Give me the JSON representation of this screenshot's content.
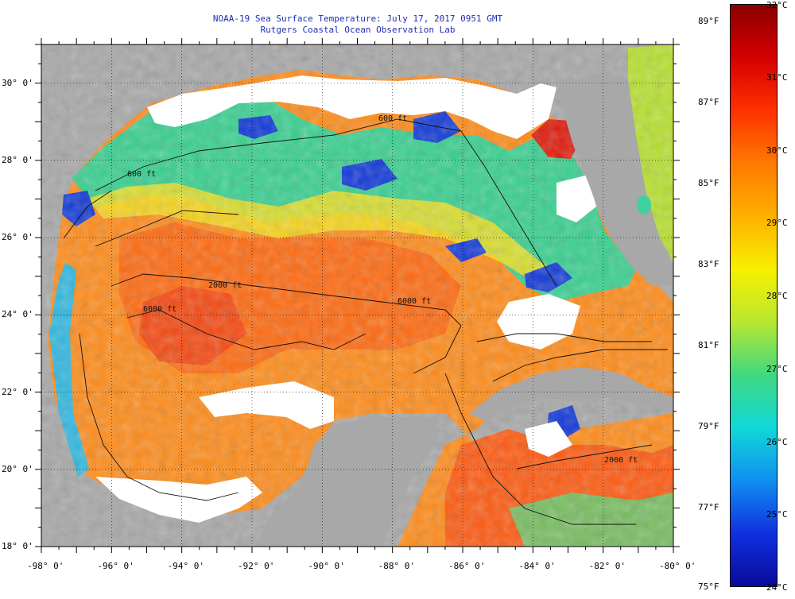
{
  "title": {
    "line1": "NOAA-19 Sea Surface Temperature:  July 17, 2017 0951 GMT",
    "line2": "Rutgers Coastal Ocean Observation Lab"
  },
  "map": {
    "lon_range": [
      -98,
      -80
    ],
    "lat_range": [
      18,
      31
    ],
    "lon_ticks": [
      "-98° 0'",
      "-96° 0'",
      "-94° 0'",
      "-92° 0'",
      "-90° 0'",
      "-88° 0'",
      "-86° 0'",
      "-84° 0'",
      "-82° 0'",
      "-80° 0'"
    ],
    "lat_ticks": [
      "30° 0'",
      "28° 0'",
      "26° 0'",
      "24° 0'",
      "22° 0'",
      "20° 0'",
      "18° 0'"
    ],
    "contour_labels": [
      "600 ft",
      "600 ft",
      "2000 ft",
      "6000 ft",
      "6000 ft",
      "2000 ft"
    ],
    "colors": {
      "land": "#a8a8a8",
      "cloud": "#ffffff",
      "contour": "#111111"
    }
  },
  "colorbar": {
    "fahrenheit_labels": [
      "89°F",
      "87°F",
      "85°F",
      "83°F",
      "81°F",
      "79°F",
      "77°F",
      "75°F"
    ],
    "celsius_labels": [
      "32°C",
      "31°C",
      "30°C",
      "29°C",
      "28°C",
      "27°C",
      "26°C",
      "25°C",
      "24°C"
    ],
    "stops": [
      "#8a0000",
      "#d40000",
      "#ff3000",
      "#ff7a00",
      "#ffb000",
      "#f8f000",
      "#b8e830",
      "#40d880",
      "#10d8d8",
      "#1090f0",
      "#1030e0",
      "#0a0a9a"
    ]
  }
}
